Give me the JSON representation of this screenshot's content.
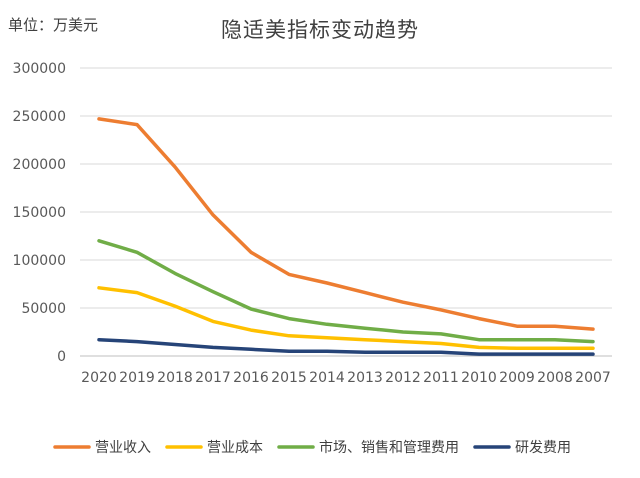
{
  "header": {
    "unit_label": "单位：万美元",
    "title": "隐适美指标变动趋势"
  },
  "colors": {
    "revenue": "#ED7D31",
    "cost": "#FFC000",
    "marketing": "#70AD47",
    "rnd": "#264478",
    "grid": "#D9D9D9",
    "axis_text": "#595959"
  },
  "chart_data": {
    "type": "line",
    "title": "隐适美指标变动趋势",
    "ylabel": "单位：万美元",
    "xlabel": "",
    "ylim": [
      0,
      300000
    ],
    "yticks": [
      0,
      50000,
      100000,
      150000,
      200000,
      250000,
      300000
    ],
    "ytick_labels": [
      "0",
      "50000",
      "100000",
      "150000",
      "200000",
      "250000",
      "300000"
    ],
    "grid": "horizontal",
    "legend_position": "bottom",
    "categories": [
      "2020",
      "2019",
      "2018",
      "2017",
      "2016",
      "2015",
      "2014",
      "2013",
      "2012",
      "2011",
      "2010",
      "2009",
      "2008",
      "2007"
    ],
    "series": [
      {
        "name": "营业收入",
        "color": "#ED7D31",
        "values": [
          247000,
          241000,
          197000,
          147000,
          108000,
          85000,
          76000,
          66000,
          56000,
          48000,
          39000,
          31000,
          31000,
          28000
        ]
      },
      {
        "name": "营业成本",
        "color": "#FFC000",
        "values": [
          71000,
          66000,
          52000,
          36000,
          27000,
          21000,
          19000,
          17000,
          15000,
          13000,
          9000,
          8000,
          8000,
          8000
        ]
      },
      {
        "name": "市场、销售和管理费用",
        "color": "#70AD47",
        "values": [
          120000,
          108000,
          86000,
          67000,
          49000,
          39000,
          33000,
          29000,
          25000,
          23000,
          17000,
          17000,
          17000,
          15000
        ]
      },
      {
        "name": "研发费用",
        "color": "#264478",
        "values": [
          17000,
          15000,
          12000,
          9000,
          7000,
          5000,
          5000,
          4000,
          4000,
          4000,
          2000,
          2000,
          2000,
          2000
        ]
      }
    ]
  }
}
